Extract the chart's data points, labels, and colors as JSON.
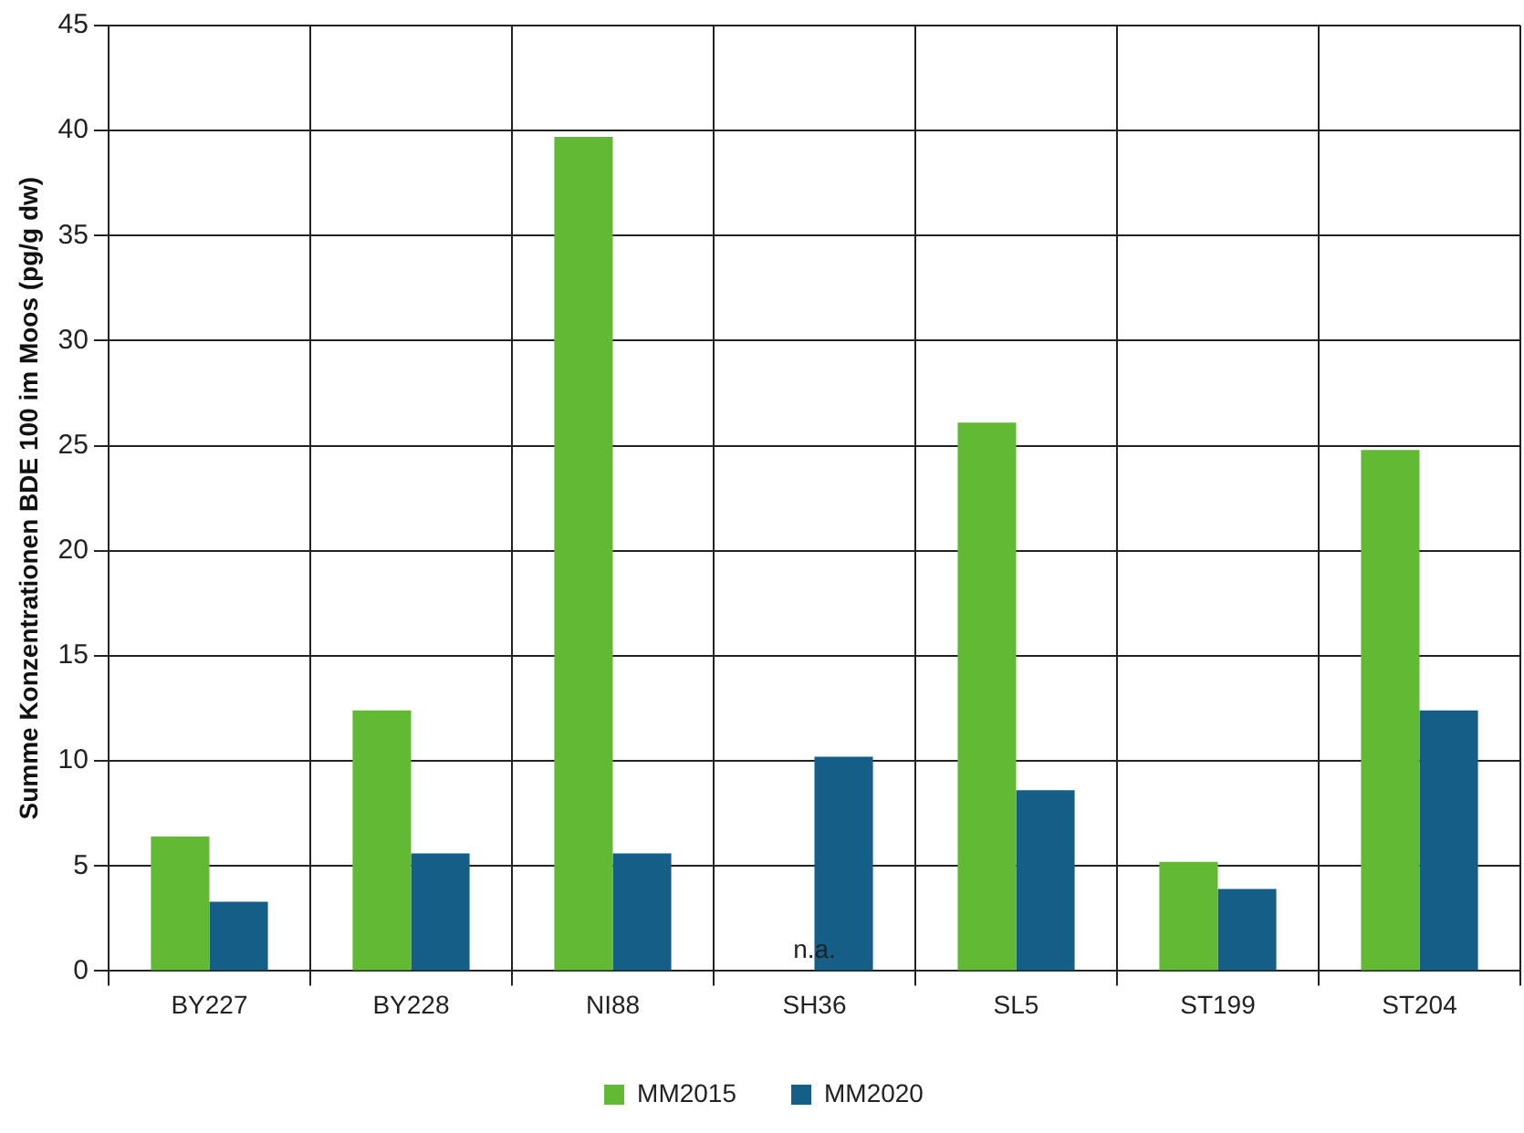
{
  "chart_data": {
    "type": "bar",
    "ylabel": "Summe Konzentrationen BDE 100 im Moos (pg/g dw)",
    "categories": [
      "BY227",
      "BY228",
      "NI88",
      "SH36",
      "SL5",
      "ST199",
      "ST204"
    ],
    "series": [
      {
        "name": "MM2015",
        "color": "#62b933",
        "values": [
          6.4,
          12.4,
          39.7,
          null,
          26.1,
          5.2,
          24.8
        ]
      },
      {
        "name": "MM2020",
        "color": "#155e87",
        "values": [
          3.3,
          5.6,
          5.6,
          10.2,
          8.6,
          3.9,
          12.4
        ]
      }
    ],
    "ylim": [
      0,
      45
    ],
    "yticks": [
      0,
      5,
      10,
      15,
      20,
      25,
      30,
      35,
      40,
      45
    ],
    "grid": true,
    "legend": "bottom",
    "annotations": [
      {
        "text": "n.a.",
        "x": "SH36",
        "y": 0
      }
    ]
  }
}
